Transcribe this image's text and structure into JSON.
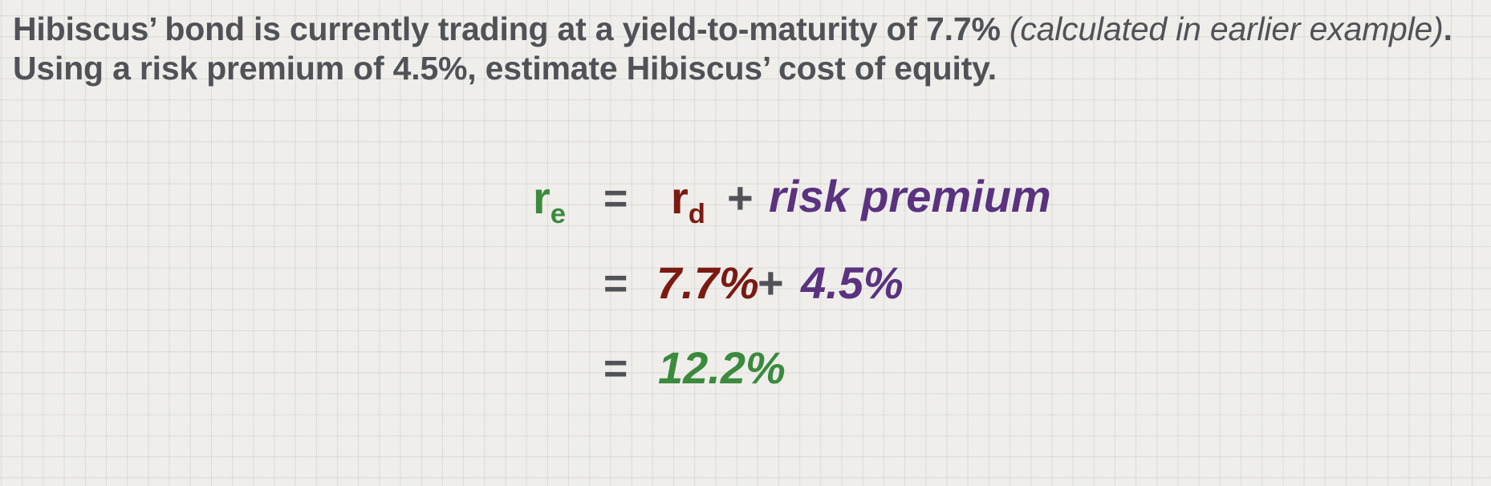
{
  "problem": {
    "part1": "Hibiscus’ bond is currently trading at a yield-to-maturity of 7.7% ",
    "note": "(calculated in earlier example)",
    "part2": ".  Using a risk premium of 4.5%, estimate Hibiscus’ cost of equity."
  },
  "equation": {
    "line1": {
      "lhs_base": "r",
      "lhs_sub": "e",
      "equals": "=",
      "rd_base": "r",
      "rd_sub": "d",
      "plus": "+",
      "premium": "risk premium"
    },
    "line2": {
      "equals": "=",
      "rd_value": "7.7%",
      "plus": "+",
      "premium_value": "4.5%"
    },
    "line3": {
      "equals": "=",
      "result": "12.2%"
    }
  },
  "colors": {
    "cost_of_equity": "#3b8a3e",
    "cost_of_debt": "#7b1a12",
    "risk_premium": "#5a3280",
    "text": "#505257"
  }
}
